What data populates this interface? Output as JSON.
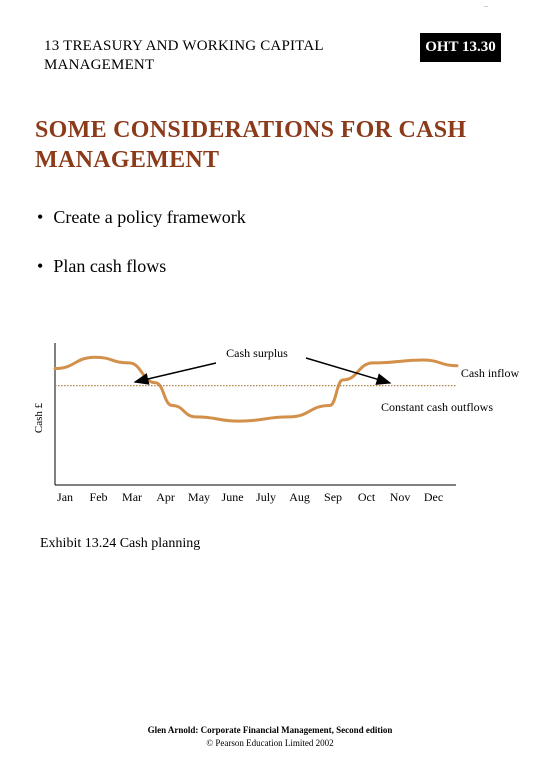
{
  "corner_mark": "..",
  "chapter_heading": "13 TREASURY AND WORKING CAPITAL MANAGEMENT",
  "oht_badge": "OHT 13.30",
  "title": "SOME CONSIDERATIONS FOR CASH MANAGEMENT",
  "bullets": [
    "Create a policy framework",
    "Plan cash flows"
  ],
  "bullet_symbol": "•",
  "chart_data": {
    "type": "line",
    "ylabel": "Cash £",
    "categories": [
      "Jan",
      "Feb",
      "Mar",
      "Apr",
      "May",
      "June",
      "July",
      "Aug",
      "Sep",
      "Oct",
      "Nov",
      "Dec"
    ],
    "series": [
      {
        "name": "Cash inflow",
        "color": "#d2904a",
        "style": "solid",
        "points": [
          [
            0,
            0.82
          ],
          [
            1.2,
            0.9
          ],
          [
            2.2,
            0.86
          ],
          [
            3.0,
            0.72
          ],
          [
            3.5,
            0.56
          ],
          [
            4.2,
            0.48
          ],
          [
            5.5,
            0.45
          ],
          [
            7.0,
            0.48
          ],
          [
            8.2,
            0.56
          ],
          [
            8.6,
            0.74
          ],
          [
            9.5,
            0.86
          ],
          [
            11.0,
            0.88
          ],
          [
            12.0,
            0.84
          ]
        ]
      },
      {
        "name": "Constant cash outflows",
        "color": "#b5804a",
        "style": "dotted",
        "points": [
          [
            0,
            0.7
          ],
          [
            12.0,
            0.7
          ]
        ]
      }
    ],
    "annotations": {
      "cash_surplus": "Cash surplus",
      "cash_inflow": "Cash inflow",
      "constant_outflows": "Constant cash outflows"
    }
  },
  "caption": "Exhibit 13.24  Cash planning",
  "footer_line1": "Glen Arnold: Corporate Financial Management, Second edition",
  "footer_line2": "© Pearson Education Limited 2002"
}
